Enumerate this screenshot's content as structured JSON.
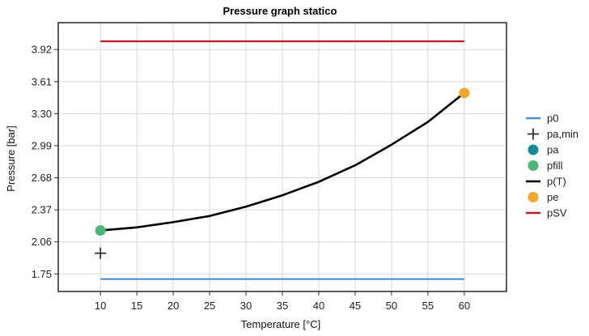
{
  "chart_data": {
    "type": "line",
    "title": "Pressure graph statico",
    "xlabel": "Temperature [°C]",
    "ylabel": "Pressure [bar]",
    "xlim": [
      4.2,
      65.8
    ],
    "ylim": [
      1.58,
      4.18
    ],
    "x_ticks": [
      "10",
      "15",
      "20",
      "25",
      "30",
      "35",
      "40",
      "45",
      "50",
      "55",
      "60"
    ],
    "y_ticks": [
      "1.75",
      "2.06",
      "2.37",
      "2.68",
      "2.99",
      "3.30",
      "3.61",
      "3.92"
    ],
    "grid": true,
    "legend_position": "right",
    "legend": [
      {
        "key": "p0",
        "label": "p0",
        "marker": "line",
        "color": "#4a90d9"
      },
      {
        "key": "pa_min",
        "label": "pa,min",
        "marker": "cross",
        "color": "#333333"
      },
      {
        "key": "pa",
        "label": "pa",
        "marker": "circle",
        "color": "#1a8a96"
      },
      {
        "key": "pfill",
        "label": "pfill",
        "marker": "circle",
        "color": "#4ab874"
      },
      {
        "key": "pT",
        "label": "p(T)",
        "marker": "line",
        "color": "#000000"
      },
      {
        "key": "pe",
        "label": "pe",
        "marker": "circle",
        "color": "#f4a52a"
      },
      {
        "key": "pSV",
        "label": "pSV",
        "marker": "line",
        "color": "#c0182c"
      }
    ],
    "series": [
      {
        "name": "p0",
        "color": "#4a90d9",
        "kind": "line",
        "x": [
          10,
          60
        ],
        "y": [
          1.7,
          1.7
        ]
      },
      {
        "name": "pSV",
        "color": "#c0182c",
        "kind": "line",
        "x": [
          10,
          60
        ],
        "y": [
          4.0,
          4.0
        ]
      },
      {
        "name": "p(T)",
        "color": "#000000",
        "kind": "line",
        "x": [
          10,
          15,
          20,
          25,
          30,
          35,
          40,
          45,
          50,
          55,
          60
        ],
        "y": [
          2.17,
          2.2,
          2.25,
          2.31,
          2.4,
          2.51,
          2.64,
          2.8,
          3.0,
          3.22,
          3.5
        ]
      },
      {
        "name": "pa,min",
        "color": "#333333",
        "kind": "cross",
        "x": [
          10
        ],
        "y": [
          1.95
        ]
      },
      {
        "name": "pfill",
        "color": "#4ab874",
        "kind": "circle",
        "x": [
          10
        ],
        "y": [
          2.17
        ]
      },
      {
        "name": "pe",
        "color": "#f4a52a",
        "kind": "circle",
        "x": [
          60
        ],
        "y": [
          3.5
        ]
      }
    ]
  }
}
